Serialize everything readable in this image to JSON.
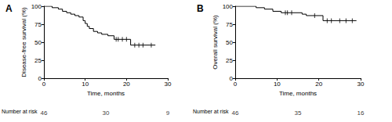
{
  "chart_data": [
    {
      "type": "line",
      "title": "A",
      "line_style": "step",
      "color": "#000000",
      "grid": false,
      "ylabel": "Disease-free survival (%)",
      "xlabel": "Time, months",
      "x": [
        0,
        2,
        3.5,
        4.5,
        5.5,
        6.5,
        7.5,
        8.5,
        9.5,
        10,
        10.5,
        11,
        12,
        13,
        14,
        15.5,
        17,
        21,
        27
      ],
      "values": [
        100,
        98,
        96,
        93,
        91,
        89,
        87,
        85,
        80,
        76,
        72,
        69,
        65,
        63,
        61,
        59,
        54,
        46,
        46
      ],
      "censored": {
        "marker": "vline",
        "x": [
          17.5,
          18,
          19,
          20,
          22,
          23,
          24,
          26
        ],
        "values": [
          54,
          54,
          54,
          54,
          46,
          46,
          46,
          46
        ]
      },
      "xlim": [
        0,
        30
      ],
      "xticks": [
        0,
        10,
        20,
        30
      ],
      "ylim": [
        0,
        100
      ],
      "yticks": [
        0,
        25,
        50,
        75,
        100
      ],
      "at_risk": {
        "label": "Number at risk",
        "x": [
          0,
          15,
          30
        ],
        "values": [
          46,
          30,
          9
        ]
      }
    },
    {
      "type": "line",
      "title": "B",
      "line_style": "step",
      "color": "#000000",
      "grid": false,
      "ylabel": "Overall survival (%)",
      "xlabel": "Time, months",
      "x": [
        0,
        5,
        7,
        9,
        11,
        16,
        17,
        21,
        29
      ],
      "values": [
        100,
        98,
        96,
        93,
        91,
        89,
        87,
        80,
        80
      ],
      "censored": {
        "marker": "vline",
        "x": [
          12,
          12.5,
          13.5,
          19,
          22,
          23,
          25,
          26.5,
          28
        ],
        "values": [
          91,
          91,
          91,
          87,
          80,
          80,
          80,
          80,
          80
        ]
      },
      "xlim": [
        0,
        30
      ],
      "xticks": [
        0,
        10,
        20,
        30
      ],
      "ylim": [
        0,
        100
      ],
      "yticks": [
        0,
        25,
        50,
        75,
        100
      ],
      "at_risk": {
        "label": "Number at risk",
        "x": [
          0,
          15,
          30
        ],
        "values": [
          46,
          35,
          16
        ]
      }
    }
  ]
}
